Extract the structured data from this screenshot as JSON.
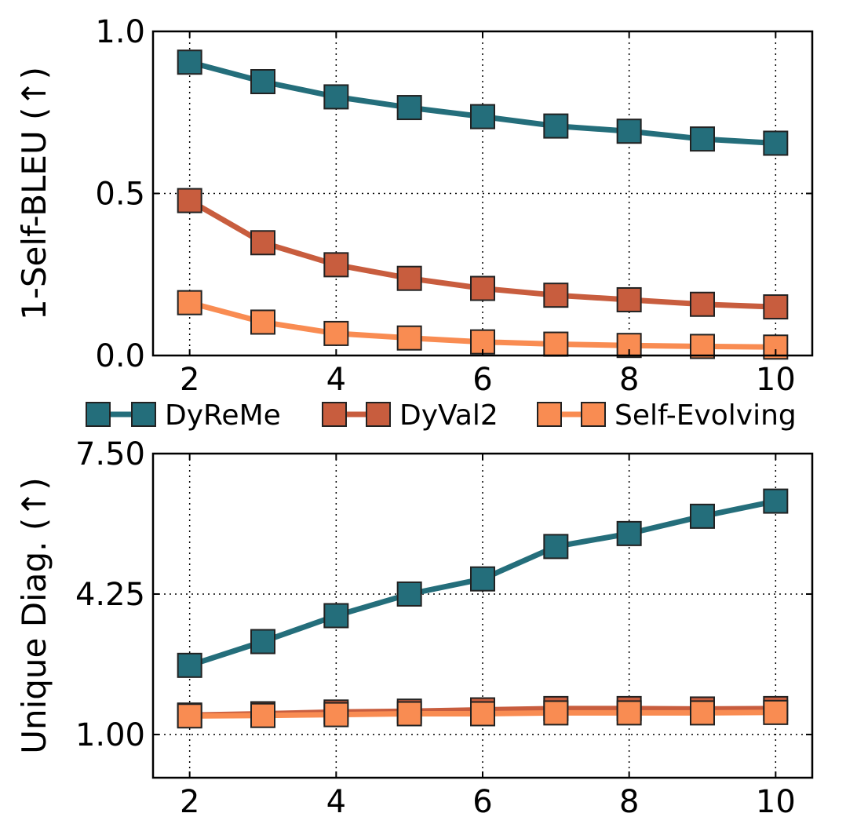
{
  "chart_data": [
    {
      "type": "line",
      "ylabel": "1-Self-BLEU (↑)",
      "xlabel": "",
      "x": [
        2,
        3,
        4,
        5,
        6,
        7,
        8,
        9,
        10
      ],
      "xticks": [
        2,
        4,
        6,
        8,
        10
      ],
      "xlim": [
        1.5,
        10.5
      ],
      "ylim": [
        0.0,
        1.0
      ],
      "yticks": [
        0.0,
        0.5,
        1.0
      ],
      "ytick_labels": [
        "0.0",
        "0.5",
        "1.0"
      ],
      "grid": true,
      "series": [
        {
          "name": "DyReMe",
          "color": "#246e7b",
          "values": [
            0.905,
            0.845,
            0.798,
            0.765,
            0.737,
            0.708,
            0.692,
            0.668,
            0.655
          ]
        },
        {
          "name": "DyVal2",
          "color": "#c85d3e",
          "values": [
            0.478,
            0.348,
            0.28,
            0.238,
            0.207,
            0.186,
            0.172,
            0.158,
            0.15
          ]
        },
        {
          "name": "Self-Evolving",
          "color": "#f98c52",
          "values": [
            0.163,
            0.103,
            0.068,
            0.054,
            0.042,
            0.035,
            0.031,
            0.028,
            0.026
          ]
        }
      ]
    },
    {
      "type": "line",
      "ylabel": "Unique Diag. (↑)",
      "xlabel": "",
      "x": [
        2,
        3,
        4,
        5,
        6,
        7,
        8,
        9,
        10
      ],
      "xticks": [
        2,
        4,
        6,
        8,
        10
      ],
      "xlim": [
        1.5,
        10.5
      ],
      "ylim": [
        0.0,
        7.5
      ],
      "yticks": [
        1.0,
        4.25,
        7.5
      ],
      "ytick_labels": [
        "1.00",
        "4.25",
        "7.50"
      ],
      "grid": true,
      "series": [
        {
          "name": "DyReMe",
          "color": "#246e7b",
          "values": [
            2.6,
            3.15,
            3.75,
            4.25,
            4.6,
            5.35,
            5.65,
            6.05,
            6.4
          ]
        },
        {
          "name": "DyVal2",
          "color": "#c85d3e",
          "values": [
            1.45,
            1.48,
            1.52,
            1.54,
            1.57,
            1.6,
            1.6,
            1.59,
            1.6
          ]
        },
        {
          "name": "Self-Evolving",
          "color": "#f98c52",
          "values": [
            1.43,
            1.44,
            1.46,
            1.48,
            1.48,
            1.5,
            1.5,
            1.5,
            1.51
          ]
        }
      ]
    }
  ],
  "legend": [
    {
      "name": "DyReMe",
      "color": "#246e7b"
    },
    {
      "name": "DyVal2",
      "color": "#c85d3e"
    },
    {
      "name": "Self-Evolving",
      "color": "#f98c52"
    }
  ]
}
